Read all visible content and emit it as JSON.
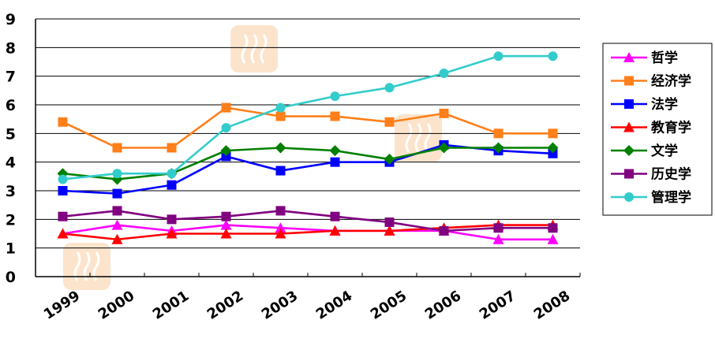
{
  "chart_data": {
    "type": "line",
    "categories": [
      "1999",
      "2000",
      "2001",
      "2002",
      "2003",
      "2004",
      "2005",
      "2006",
      "2007",
      "2008"
    ],
    "ylim": [
      0,
      9
    ],
    "yticks": [
      "0",
      "1",
      "2",
      "3",
      "4",
      "5",
      "6",
      "7",
      "8",
      "9"
    ],
    "grid": "horizontal",
    "legend": "right",
    "series": [
      {
        "name": "哲学",
        "color": "#ff00ff",
        "marker": "triangle",
        "values": [
          1.5,
          1.8,
          1.6,
          1.8,
          1.7,
          1.6,
          1.6,
          1.6,
          1.3,
          1.3
        ]
      },
      {
        "name": "经济学",
        "color": "#ff7f1a",
        "marker": "square",
        "values": [
          5.4,
          4.5,
          4.5,
          5.9,
          5.6,
          5.6,
          5.4,
          5.7,
          5.0,
          5.0
        ]
      },
      {
        "name": "法学",
        "color": "#0000ff",
        "marker": "square",
        "values": [
          3.0,
          2.9,
          3.2,
          4.2,
          3.7,
          4.0,
          4.0,
          4.6,
          4.4,
          4.3
        ]
      },
      {
        "name": "教育学",
        "color": "#ff0000",
        "marker": "triangle",
        "values": [
          1.5,
          1.3,
          1.5,
          1.5,
          1.5,
          1.6,
          1.6,
          1.7,
          1.8,
          1.8
        ]
      },
      {
        "name": "文学",
        "color": "#008000",
        "marker": "diamond",
        "values": [
          3.6,
          3.4,
          3.6,
          4.4,
          4.5,
          4.4,
          4.1,
          4.5,
          4.5,
          4.5
        ]
      },
      {
        "name": "历史学",
        "color": "#800080",
        "marker": "square",
        "values": [
          2.1,
          2.3,
          2.0,
          2.1,
          2.3,
          2.1,
          1.9,
          1.6,
          1.7,
          1.7
        ]
      },
      {
        "name": "管理学",
        "color": "#33cccc",
        "marker": "circle",
        "values": [
          3.4,
          3.6,
          3.6,
          5.2,
          5.9,
          6.3,
          6.6,
          7.1,
          7.7,
          7.7
        ]
      }
    ]
  }
}
